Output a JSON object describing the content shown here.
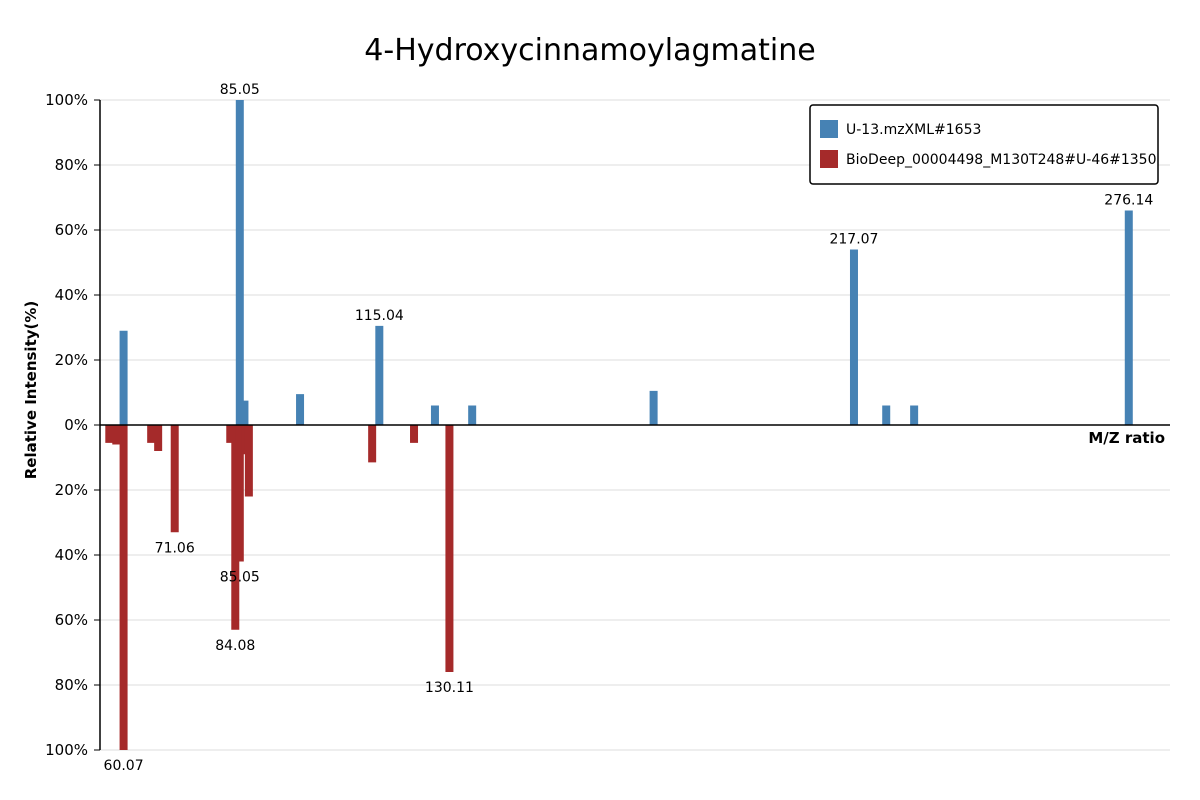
{
  "chart_data": {
    "type": "bar",
    "title": "4-Hydroxycinnamoylagmatine",
    "xlabel": "M/Z ratio",
    "ylabel": "Relative Intensity(%)",
    "yticks_top": [
      "100%",
      "80%",
      "60%",
      "40%",
      "20%",
      "0%"
    ],
    "yticks_bottom": [
      "20%",
      "40%",
      "60%",
      "80%",
      "100%"
    ],
    "ylim": [
      -100,
      100
    ],
    "xlim": [
      55,
      285
    ],
    "grid": true,
    "legend_position": "top-right",
    "series": [
      {
        "name": "U-13.mzXML#1653",
        "color": "#4682b4",
        "direction": "up",
        "peaks": [
          {
            "mz": 60.07,
            "intensity": 29
          },
          {
            "mz": 85.05,
            "intensity": 100,
            "label": "85.05"
          },
          {
            "mz": 86.05,
            "intensity": 7.5
          },
          {
            "mz": 98.0,
            "intensity": 9.5
          },
          {
            "mz": 115.04,
            "intensity": 30.5,
            "label": "115.04"
          },
          {
            "mz": 127.0,
            "intensity": 6
          },
          {
            "mz": 135.0,
            "intensity": 6
          },
          {
            "mz": 174.0,
            "intensity": 10.5
          },
          {
            "mz": 217.07,
            "intensity": 54,
            "label": "217.07"
          },
          {
            "mz": 224.0,
            "intensity": 6
          },
          {
            "mz": 230.0,
            "intensity": 6
          },
          {
            "mz": 276.14,
            "intensity": 66,
            "label": "276.14"
          }
        ]
      },
      {
        "name": "BioDeep_00004498_M130T248#U-46#1350",
        "color": "#a52a2a",
        "direction": "down",
        "peaks": [
          {
            "mz": 57.0,
            "intensity": 5.5
          },
          {
            "mz": 58.5,
            "intensity": 6
          },
          {
            "mz": 60.07,
            "intensity": 100,
            "label": "60.07"
          },
          {
            "mz": 66.0,
            "intensity": 5.5
          },
          {
            "mz": 67.5,
            "intensity": 8
          },
          {
            "mz": 71.06,
            "intensity": 33,
            "label": "71.06"
          },
          {
            "mz": 83.0,
            "intensity": 5.5
          },
          {
            "mz": 84.08,
            "intensity": 63,
            "label": "84.08"
          },
          {
            "mz": 85.05,
            "intensity": 42,
            "label": "85.05"
          },
          {
            "mz": 86.2,
            "intensity": 9
          },
          {
            "mz": 87.0,
            "intensity": 22
          },
          {
            "mz": 113.5,
            "intensity": 11.5
          },
          {
            "mz": 122.5,
            "intensity": 5.5
          },
          {
            "mz": 130.11,
            "intensity": 76,
            "label": "130.11"
          }
        ]
      }
    ]
  }
}
